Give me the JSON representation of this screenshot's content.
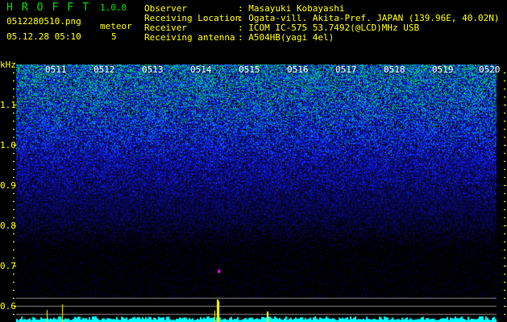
{
  "app": {
    "logo": "HROFFT",
    "version": "1.0.0"
  },
  "file": {
    "name": "0512280510.png",
    "datetime": "05.12.28 05:10"
  },
  "meteor": {
    "label": "meteor",
    "count": "5"
  },
  "info": [
    {
      "label": "Observer",
      "value": ": Masayuki Kobayashi"
    },
    {
      "label": "Receiving Location",
      "value": ": Ogata-vill. Akita-Pref. JAPAN (139.96E, 40.02N)"
    },
    {
      "label": "Receiver",
      "value": ": ICOM IC-575 53.7492(@LCD)MHz USB"
    },
    {
      "label": "Receiving antenna",
      "value": ": A504HB(yagi 4el)"
    }
  ],
  "axis": {
    "unit": "kHz",
    "y_ticks": [
      "1.1",
      "1.0",
      "0.9",
      "0.8",
      "0.7",
      "0.6"
    ],
    "time_labels": [
      "0511",
      "0512",
      "0513",
      "0514",
      "0515",
      "0516",
      "0517",
      "0518",
      "0519",
      "0520"
    ]
  },
  "colors": {
    "text": "#ffff00",
    "logo": "#00e000",
    "histogram": "#00ffff",
    "meteor_marks": "#ffff00"
  }
}
